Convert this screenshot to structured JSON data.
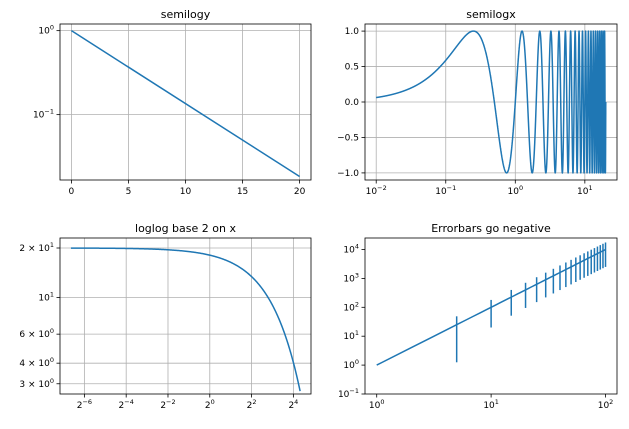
{
  "figure": {
    "line_color": "#1f77b4",
    "grid_color": "#b0b0b0"
  },
  "chart_data": [
    {
      "id": "semilogy",
      "type": "line",
      "title": "semilogy",
      "xscale": "linear",
      "yscale": "log",
      "x": [
        0,
        20
      ],
      "y": [
        1.0,
        0.0183156
      ],
      "xlim": [
        -1,
        21
      ],
      "ylim": [
        0.01666,
        1.2
      ],
      "xticks": [
        {
          "v": 0,
          "t": "0"
        },
        {
          "v": 5,
          "t": "5"
        },
        {
          "v": 10,
          "t": "10"
        },
        {
          "v": 15,
          "t": "15"
        },
        {
          "v": 20,
          "t": "20"
        }
      ],
      "yticks": [
        {
          "v": 1,
          "b": "10",
          "e": "0"
        },
        {
          "v": 0.1,
          "b": "10",
          "e": "−1"
        }
      ],
      "grid": true
    },
    {
      "id": "semilogx",
      "type": "line",
      "title": "semilogx",
      "xscale": "log",
      "yscale": "linear",
      "function": "sin(2*pi*x)",
      "x_range": [
        0.01,
        20
      ],
      "xlim": [
        0.0069,
        29
      ],
      "ylim": [
        -1.1,
        1.1
      ],
      "xticks": [
        {
          "v": 0.01,
          "b": "10",
          "e": "−2"
        },
        {
          "v": 0.1,
          "b": "10",
          "e": "−1"
        },
        {
          "v": 1,
          "b": "10",
          "e": "0"
        },
        {
          "v": 10,
          "b": "10",
          "e": "1"
        }
      ],
      "yticks": [
        {
          "v": 1,
          "t": "1.0"
        },
        {
          "v": 0.5,
          "t": "0.5"
        },
        {
          "v": 0,
          "t": "0.0"
        },
        {
          "v": -0.5,
          "t": "−0.5"
        },
        {
          "v": -1,
          "t": "−1.0"
        }
      ],
      "grid": true
    },
    {
      "id": "loglog",
      "type": "line",
      "title": "loglog base 2 on x",
      "xscale": "log2",
      "yscale": "log",
      "function": "20*exp(-x/10)",
      "x_range": [
        0.01,
        20
      ],
      "xlim": [
        0.00696,
        28.7
      ],
      "ylim": [
        2.6,
        23
      ],
      "xticks": [
        {
          "v": 0.015625,
          "b": "2",
          "e": "−6"
        },
        {
          "v": 0.0625,
          "b": "2",
          "e": "−4"
        },
        {
          "v": 0.25,
          "b": "2",
          "e": "−2"
        },
        {
          "v": 1,
          "b": "2",
          "e": "0"
        },
        {
          "v": 4,
          "b": "2",
          "e": "2"
        },
        {
          "v": 16,
          "b": "2",
          "e": "4"
        }
      ],
      "yticks": [
        {
          "v": 20,
          "t": "2 × 10",
          "e": "1"
        },
        {
          "v": 10,
          "b": "10",
          "e": "1"
        },
        {
          "v": 6,
          "t": "6 × 10",
          "e": "0"
        },
        {
          "v": 4,
          "t": "4 × 10",
          "e": "0"
        },
        {
          "v": 3,
          "t": "3 × 10",
          "e": "0"
        }
      ],
      "grid": true
    },
    {
      "id": "errorbar",
      "type": "line",
      "title": "Errorbars go negative",
      "xscale": "log",
      "yscale": "log",
      "x": [
        1,
        2,
        3,
        4,
        5,
        6,
        7,
        8,
        9,
        10,
        11,
        12,
        13,
        14,
        15,
        16,
        17,
        18,
        19,
        20,
        21,
        22,
        23,
        24,
        25,
        26,
        27,
        28,
        29,
        30,
        31,
        32,
        33,
        34,
        35,
        36,
        37,
        38,
        39,
        40,
        41,
        42,
        43,
        44,
        45,
        46,
        47,
        48,
        49,
        50,
        51,
        52,
        53,
        54,
        55,
        56,
        57,
        58,
        59,
        60,
        61,
        62,
        63,
        64,
        65,
        66,
        67,
        68,
        69,
        70,
        71,
        72,
        73,
        74,
        75,
        76,
        77,
        78,
        79,
        80,
        81,
        82,
        83,
        84,
        85,
        86,
        87,
        88,
        89,
        90,
        91,
        92,
        93,
        94,
        95,
        96,
        97,
        98,
        99,
        100
      ],
      "y_rule": "y = x^2",
      "error_x": [
        5,
        10,
        15,
        20,
        25,
        30,
        35,
        40,
        45,
        50,
        55,
        60,
        65,
        70,
        75,
        80,
        85,
        90,
        95,
        100
      ],
      "yerr_rule": "yerr = 5 + 0.75*y",
      "xlim": [
        0.79,
        126
      ],
      "ylim": [
        0.1,
        25000
      ],
      "xticks": [
        {
          "v": 1,
          "b": "10",
          "e": "0"
        },
        {
          "v": 10,
          "b": "10",
          "e": "1"
        },
        {
          "v": 100,
          "b": "10",
          "e": "2"
        }
      ],
      "yticks": [
        {
          "v": 10000,
          "b": "10",
          "e": "4"
        },
        {
          "v": 1000,
          "b": "10",
          "e": "3"
        },
        {
          "v": 100,
          "b": "10",
          "e": "2"
        },
        {
          "v": 10,
          "b": "10",
          "e": "1"
        },
        {
          "v": 1,
          "b": "10",
          "e": "0"
        },
        {
          "v": 0.1,
          "b": "10",
          "e": "−1"
        }
      ],
      "grid": false
    }
  ]
}
